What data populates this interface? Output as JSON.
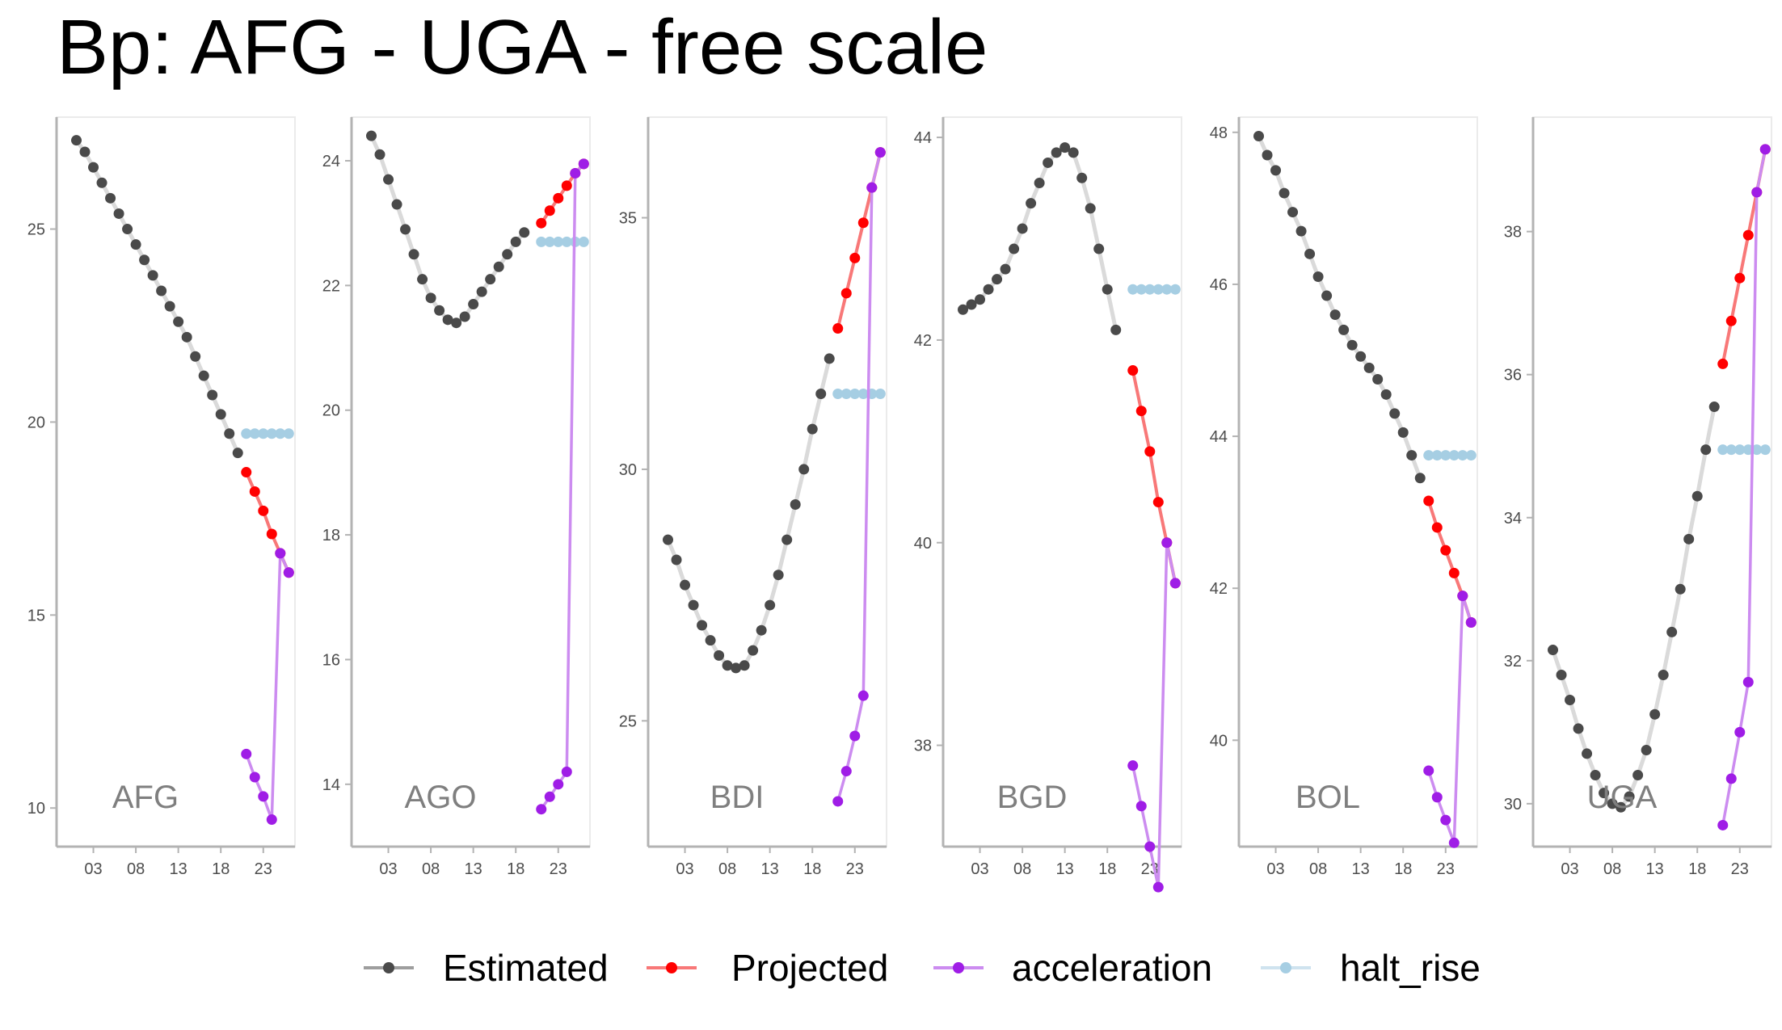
{
  "title": "Bp: AFG - UGA - free scale",
  "chart_data": {
    "type": "line",
    "title": "Bp: AFG - UGA - free scale",
    "xlabel": "",
    "ylabel": "",
    "x_tick_labels": [
      "03",
      "08",
      "13",
      "18",
      "23"
    ],
    "x_tick_values": [
      2003,
      2008,
      2013,
      2018,
      2023
    ],
    "xlim": [
      2000,
      2025.4
    ],
    "legend": {
      "position": "bottom",
      "entries": [
        {
          "key": "Estimated",
          "label": "Estimated",
          "color": "#4a4a4a",
          "line_color": "#9e9e9e"
        },
        {
          "key": "Projected",
          "label": "Projected",
          "color": "#ff0000",
          "line_color": "#f87878"
        },
        {
          "key": "acceleration",
          "label": "acceleration",
          "color": "#9f1de6",
          "line_color": "#cc8cf0"
        },
        {
          "key": "halt_rise",
          "label": "halt_rise",
          "color": "#a6cee3",
          "line_color": "#cfe3ef"
        }
      ]
    },
    "panels": [
      {
        "label": "AFG",
        "ylim": [
          9.0,
          27.9
        ],
        "yticks": [
          10,
          15,
          20,
          25
        ],
        "ytick_labels": [
          "10",
          "15",
          "20",
          "25"
        ],
        "series": {
          "Estimated": {
            "x": [
              2001,
              2002,
              2003,
              2004,
              2005,
              2006,
              2007,
              2008,
              2009,
              2010,
              2011,
              2012,
              2013,
              2014,
              2015,
              2016,
              2017,
              2018,
              2019
            ],
            "y": [
              27.3,
              27.0,
              26.6,
              26.2,
              25.8,
              25.4,
              25.0,
              24.6,
              24.2,
              23.8,
              23.4,
              23.0,
              22.6,
              22.2,
              21.7,
              21.2,
              20.7,
              20.2,
              19.7
            ]
          },
          "extra": {
            "x": [
              2020
            ],
            "y": [
              19.2
            ]
          },
          "Projected": {
            "x": [
              2021,
              2022,
              2023,
              2024,
              2025,
              2026
            ],
            "y": [
              18.7,
              18.2,
              17.7,
              17.1,
              16.6,
              16.1
            ]
          },
          "acceleration": {
            "x": [
              2021,
              2022,
              2023,
              2024,
              2025,
              2026
            ],
            "y": [
              11.4,
              10.8,
              10.3,
              9.7,
              16.6,
              16.1
            ]
          },
          "halt_rise": {
            "x": [
              2021,
              2022,
              2023,
              2024,
              2025,
              2026
            ],
            "y": [
              19.7,
              19.7,
              19.7,
              19.7,
              19.7,
              19.7
            ]
          }
        }
      },
      {
        "label": "AGO",
        "ylim": [
          13.0,
          24.7
        ],
        "yticks": [
          14,
          16,
          18,
          20,
          22,
          24
        ],
        "ytick_labels": [
          "14",
          "16",
          "18",
          "20",
          "22",
          "24"
        ],
        "series": {
          "Estimated": {
            "x": [
              2001,
              2002,
              2003,
              2004,
              2005,
              2006,
              2007,
              2008,
              2009,
              2010,
              2011,
              2012,
              2013,
              2014,
              2015,
              2016,
              2017,
              2018,
              2019
            ],
            "y": [
              24.4,
              24.1,
              23.7,
              23.3,
              22.9,
              22.5,
              22.1,
              21.8,
              21.6,
              21.45,
              21.4,
              21.5,
              21.7,
              21.9,
              22.1,
              22.3,
              22.5,
              22.7,
              22.85
            ]
          },
          "Projected": {
            "x": [
              2021,
              2022,
              2023,
              2024,
              2025,
              2026
            ],
            "y": [
              23.0,
              23.2,
              23.4,
              23.6,
              23.8,
              23.95
            ]
          },
          "acceleration": {
            "x": [
              2021,
              2022,
              2023,
              2024,
              2025,
              2026
            ],
            "y": [
              13.6,
              13.8,
              14.0,
              14.2,
              23.8,
              23.95
            ]
          },
          "halt_rise": {
            "x": [
              2021,
              2022,
              2023,
              2024,
              2025,
              2026
            ],
            "y": [
              22.7,
              22.7,
              22.7,
              22.7,
              22.7,
              22.7
            ]
          }
        }
      },
      {
        "label": "BDI",
        "ylim": [
          22.5,
          37.0
        ],
        "yticks": [
          25,
          30,
          35
        ],
        "ytick_labels": [
          "25",
          "30",
          "35"
        ],
        "series": {
          "Estimated": {
            "x": [
              2001,
              2002,
              2003,
              2004,
              2005,
              2006,
              2007,
              2008,
              2009,
              2010,
              2011,
              2012,
              2013,
              2014,
              2015,
              2016,
              2017,
              2018,
              2019
            ],
            "y": [
              28.6,
              28.2,
              27.7,
              27.3,
              26.9,
              26.6,
              26.3,
              26.1,
              26.05,
              26.1,
              26.4,
              26.8,
              27.3,
              27.9,
              28.6,
              29.3,
              30.0,
              30.8,
              31.5
            ]
          },
          "extra": {
            "x": [
              2020
            ],
            "y": [
              32.2
            ]
          },
          "Projected": {
            "x": [
              2021,
              2022,
              2023,
              2024,
              2025,
              2026
            ],
            "y": [
              32.8,
              33.5,
              34.2,
              34.9,
              35.6,
              36.3
            ]
          },
          "acceleration": {
            "x": [
              2021,
              2022,
              2023,
              2024,
              2025,
              2026
            ],
            "y": [
              23.4,
              24.0,
              24.7,
              25.5,
              35.6,
              36.3
            ]
          },
          "halt_rise": {
            "x": [
              2021,
              2022,
              2023,
              2024,
              2025,
              2026
            ],
            "y": [
              31.5,
              31.5,
              31.5,
              31.5,
              31.5,
              31.5
            ]
          }
        }
      },
      {
        "label": "BGD",
        "ylim": [
          37.0,
          44.2
        ],
        "yticks": [
          38,
          40,
          42,
          44
        ],
        "ytick_labels": [
          "38",
          "40",
          "42",
          "44"
        ],
        "series": {
          "Estimated": {
            "x": [
              2001,
              2002,
              2003,
              2004,
              2005,
              2006,
              2007,
              2008,
              2009,
              2010,
              2011,
              2012,
              2013,
              2014,
              2015,
              2016,
              2017,
              2018,
              2019
            ],
            "y": [
              42.3,
              42.35,
              42.4,
              42.5,
              42.6,
              42.7,
              42.9,
              43.1,
              43.35,
              43.55,
              43.75,
              43.85,
              43.9,
              43.85,
              43.6,
              43.3,
              42.9,
              42.5,
              42.1
            ]
          },
          "Projected": {
            "x": [
              2021,
              2022,
              2023,
              2024,
              2025,
              2026
            ],
            "y": [
              41.7,
              41.3,
              40.9,
              40.4,
              40.0,
              39.6
            ]
          },
          "acceleration": {
            "x": [
              2021,
              2022,
              2023,
              2024,
              2025,
              2026
            ],
            "y": [
              37.8,
              37.4,
              37.0,
              36.6,
              40.0,
              39.6
            ]
          },
          "halt_rise": {
            "x": [
              2021,
              2022,
              2023,
              2024,
              2025,
              2026
            ],
            "y": [
              42.5,
              42.5,
              42.5,
              42.5,
              42.5,
              42.5
            ]
          }
        }
      },
      {
        "label": "BOL",
        "ylim": [
          38.6,
          48.2
        ],
        "yticks": [
          40,
          42,
          44,
          46,
          48
        ],
        "ytick_labels": [
          "40",
          "42",
          "44",
          "46",
          "48"
        ],
        "series": {
          "Estimated": {
            "x": [
              2001,
              2002,
              2003,
              2004,
              2005,
              2006,
              2007,
              2008,
              2009,
              2010,
              2011,
              2012,
              2013,
              2014,
              2015,
              2016,
              2017,
              2018,
              2019
            ],
            "y": [
              47.95,
              47.7,
              47.5,
              47.2,
              46.95,
              46.7,
              46.4,
              46.1,
              45.85,
              45.6,
              45.4,
              45.2,
              45.05,
              44.9,
              44.75,
              44.55,
              44.3,
              44.05,
              43.75
            ]
          },
          "extra": {
            "x": [
              2020
            ],
            "y": [
              43.45
            ]
          },
          "Projected": {
            "x": [
              2021,
              2022,
              2023,
              2024,
              2025,
              2026
            ],
            "y": [
              43.15,
              42.8,
              42.5,
              42.2,
              41.9,
              41.55
            ]
          },
          "acceleration": {
            "x": [
              2021,
              2022,
              2023,
              2024,
              2025,
              2026
            ],
            "y": [
              39.6,
              39.25,
              38.95,
              38.65,
              41.9,
              41.55
            ]
          },
          "halt_rise": {
            "x": [
              2021,
              2022,
              2023,
              2024,
              2025,
              2026
            ],
            "y": [
              43.75,
              43.75,
              43.75,
              43.75,
              43.75,
              43.75
            ]
          }
        }
      },
      {
        "label": "UGA",
        "ylim": [
          29.4,
          39.6
        ],
        "yticks": [
          30,
          32,
          34,
          36,
          38
        ],
        "ytick_labels": [
          "30",
          "32",
          "34",
          "36",
          "38"
        ],
        "series": {
          "Estimated": {
            "x": [
              2001,
              2002,
              2003,
              2004,
              2005,
              2006,
              2007,
              2008,
              2009,
              2010,
              2011,
              2012,
              2013,
              2014,
              2015,
              2016,
              2017,
              2018,
              2019
            ],
            "y": [
              32.15,
              31.8,
              31.45,
              31.05,
              30.7,
              30.4,
              30.15,
              30.0,
              29.95,
              30.1,
              30.4,
              30.75,
              31.25,
              31.8,
              32.4,
              33.0,
              33.7,
              34.3,
              34.95
            ]
          },
          "extra": {
            "x": [
              2020
            ],
            "y": [
              35.55
            ]
          },
          "Projected": {
            "x": [
              2021,
              2022,
              2023,
              2024,
              2025,
              2026
            ],
            "y": [
              36.15,
              36.75,
              37.35,
              37.95,
              38.55,
              39.15
            ]
          },
          "acceleration": {
            "x": [
              2021,
              2022,
              2023,
              2024,
              2025,
              2026
            ],
            "y": [
              29.7,
              30.35,
              31.0,
              31.7,
              38.55,
              39.15
            ]
          },
          "halt_rise": {
            "x": [
              2021,
              2022,
              2023,
              2024,
              2025,
              2026
            ],
            "y": [
              34.95,
              34.95,
              34.95,
              34.95,
              34.95,
              34.95
            ]
          }
        }
      }
    ]
  }
}
